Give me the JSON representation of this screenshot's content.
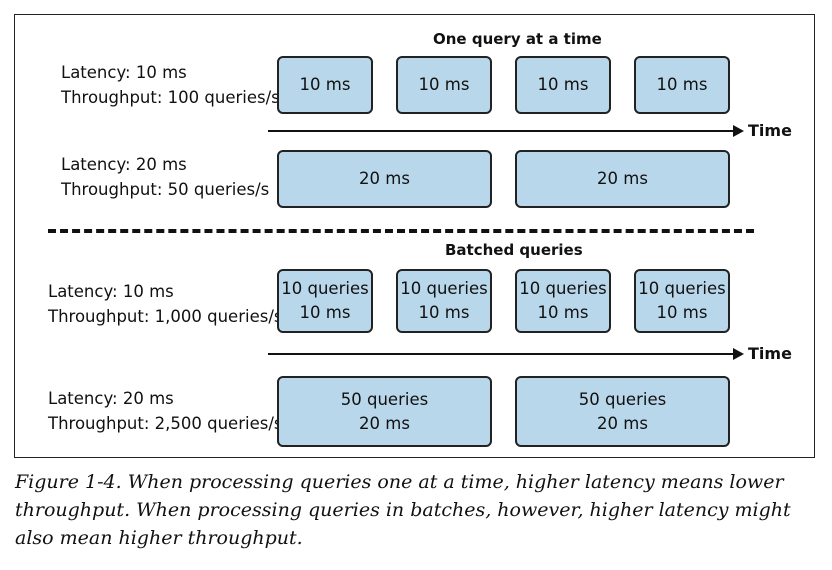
{
  "top": {
    "title": "One query at a time",
    "row1": {
      "latency": "Latency: 10 ms",
      "throughput": "Throughput: 100 queries/s",
      "boxes": [
        {
          "l1": "10 ms"
        },
        {
          "l1": "10 ms"
        },
        {
          "l1": "10 ms"
        },
        {
          "l1": "10 ms"
        }
      ]
    },
    "axis_label": "Time",
    "row2": {
      "latency": "Latency: 20 ms",
      "throughput": "Throughput: 50 queries/s",
      "boxes": [
        {
          "l1": "20 ms"
        },
        {
          "l1": "20 ms"
        }
      ]
    }
  },
  "bottom": {
    "title": "Batched queries",
    "row1": {
      "latency": "Latency: 10 ms",
      "throughput": "Throughput: 1,000 queries/s",
      "boxes": [
        {
          "l1": "10 queries",
          "l2": "10 ms"
        },
        {
          "l1": "10 queries",
          "l2": "10 ms"
        },
        {
          "l1": "10 queries",
          "l2": "10 ms"
        },
        {
          "l1": "10 queries",
          "l2": "10 ms"
        }
      ]
    },
    "axis_label": "Time",
    "row2": {
      "latency": "Latency: 20 ms",
      "throughput": "Throughput: 2,500 queries/s",
      "boxes": [
        {
          "l1": "50 queries",
          "l2": "20 ms"
        },
        {
          "l1": "50 queries",
          "l2": "20 ms"
        }
      ]
    }
  },
  "caption": "Figure 1-4. When processing queries one at a time, higher latency means lower throughput. When processing queries in batches, however, higher latency might also mean higher throughput.",
  "colors": {
    "box_fill": "#b9d7ea",
    "stroke": "#222222"
  }
}
